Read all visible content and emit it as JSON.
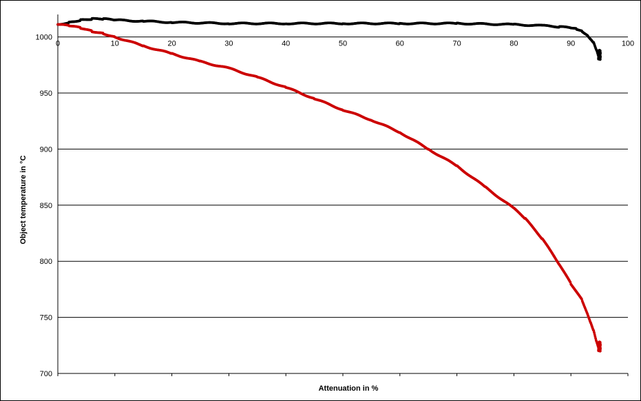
{
  "chart_data": {
    "type": "scatter",
    "title": "",
    "xlabel": "Attenuation in %",
    "ylabel": "Object temperature in °C",
    "xlim": [
      0,
      100
    ],
    "ylim": [
      700,
      1020
    ],
    "x_ticks": [
      0,
      10,
      20,
      30,
      40,
      50,
      60,
      70,
      80,
      90,
      100
    ],
    "y_ticks": [
      700,
      750,
      800,
      850,
      900,
      950,
      1000
    ],
    "grid": "horizontal",
    "legend": "none",
    "series": [
      {
        "color": "#000000",
        "x": [
          0,
          2,
          4,
          6,
          8,
          10,
          15,
          20,
          30,
          40,
          50,
          60,
          70,
          80,
          85,
          88,
          90,
          91,
          92,
          93,
          93.5,
          94,
          94.5,
          95
        ],
        "y": [
          1011,
          1013,
          1015,
          1016,
          1016,
          1015,
          1014,
          1013,
          1012,
          1012,
          1012,
          1012,
          1012,
          1011,
          1010,
          1009,
          1008,
          1007,
          1005,
          1001,
          998,
          995,
          988,
          980
        ]
      },
      {
        "color": "#cc0000",
        "x": [
          0,
          2,
          4,
          6,
          8,
          10,
          15,
          20,
          25,
          30,
          35,
          40,
          45,
          50,
          55,
          60,
          65,
          70,
          75,
          80,
          82,
          85,
          88,
          90,
          92,
          93,
          93.5,
          94,
          94.5,
          95
        ],
        "y": [
          1011,
          1010,
          1008,
          1005,
          1003,
          1000,
          992,
          985,
          978,
          972,
          964,
          955,
          945,
          935,
          926,
          915,
          900,
          885,
          866,
          847,
          838,
          820,
          797,
          780,
          765,
          752,
          745,
          738,
          728,
          720
        ]
      }
    ]
  }
}
